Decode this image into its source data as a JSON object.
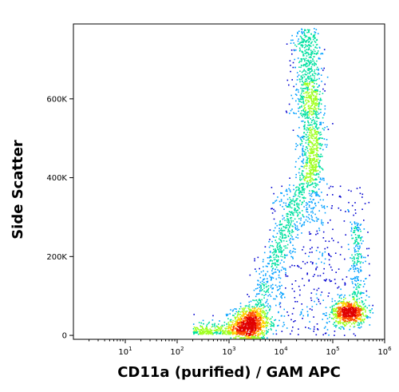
{
  "chart_data": {
    "type": "scatter",
    "style": "flow cytometry density dot plot",
    "title": "",
    "xlabel": "CD11a (purified) / GAM APC",
    "ylabel": "Side Scatter",
    "x_scale": "log",
    "xlim": [
      1,
      1000000
    ],
    "ylim": [
      -10000,
      790000
    ],
    "grid": false,
    "legend": "none",
    "x_ticks": [
      {
        "value": 10,
        "base": "10",
        "exp": "1"
      },
      {
        "value": 100,
        "base": "10",
        "exp": "2"
      },
      {
        "value": 1000,
        "base": "10",
        "exp": "3"
      },
      {
        "value": 10000,
        "base": "10",
        "exp": "4"
      },
      {
        "value": 100000,
        "base": "10",
        "exp": "5"
      },
      {
        "value": 1000000,
        "base": "10",
        "exp": "6"
      }
    ],
    "y_ticks": [
      {
        "value": 0,
        "label": "0"
      },
      {
        "value": 200000,
        "label": "200K"
      },
      {
        "value": 400000,
        "label": "400K"
      },
      {
        "value": 600000,
        "label": "600K"
      }
    ],
    "density_colormap": [
      "#0000d0",
      "#00a0ff",
      "#00e0a0",
      "#a0ff20",
      "#ffd000",
      "#ff5000",
      "#e00000"
    ],
    "populations": [
      {
        "name": "",
        "x_center": 2500,
        "y_center": 30000,
        "x_spread_decades": 0.18,
        "y_spread": 22000,
        "relative_density": 1.0
      },
      {
        "name": "",
        "x_center": 40000,
        "y_center": 500000,
        "x_spread_decades": 0.12,
        "y_spread": 90000,
        "relative_density": 0.7
      },
      {
        "name": "",
        "x_center": 200000,
        "y_center": 60000,
        "x_spread_decades": 0.16,
        "y_spread": 15000,
        "relative_density": 0.75
      }
    ]
  }
}
